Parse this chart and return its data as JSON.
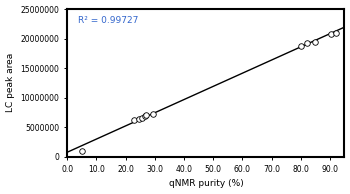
{
  "x_data": [
    5.0,
    23.0,
    24.5,
    25.5,
    26.5,
    27.0,
    29.5,
    80.0,
    82.0,
    85.0,
    90.5,
    92.0
  ],
  "y_data": [
    1000000,
    6200000,
    6400000,
    6600000,
    6900000,
    7000000,
    7200000,
    18800000,
    19200000,
    19500000,
    20800000,
    21000000
  ],
  "r_squared": "R² = 0.99727",
  "xlabel": "qNMR purity (%)",
  "ylabel": "LC peak area",
  "xlim": [
    0,
    95
  ],
  "ylim": [
    0,
    25000000
  ],
  "xticks": [
    0.0,
    10.0,
    20.0,
    30.0,
    40.0,
    50.0,
    60.0,
    70.0,
    80.0,
    90.0
  ],
  "yticks": [
    0,
    5000000,
    10000000,
    15000000,
    20000000,
    25000000
  ],
  "marker_color": "white",
  "marker_edge_color": "black",
  "line_color": "black",
  "annotation_color": "#3366cc",
  "background_color": "white",
  "marker_size": 4,
  "line_width": 1.0
}
